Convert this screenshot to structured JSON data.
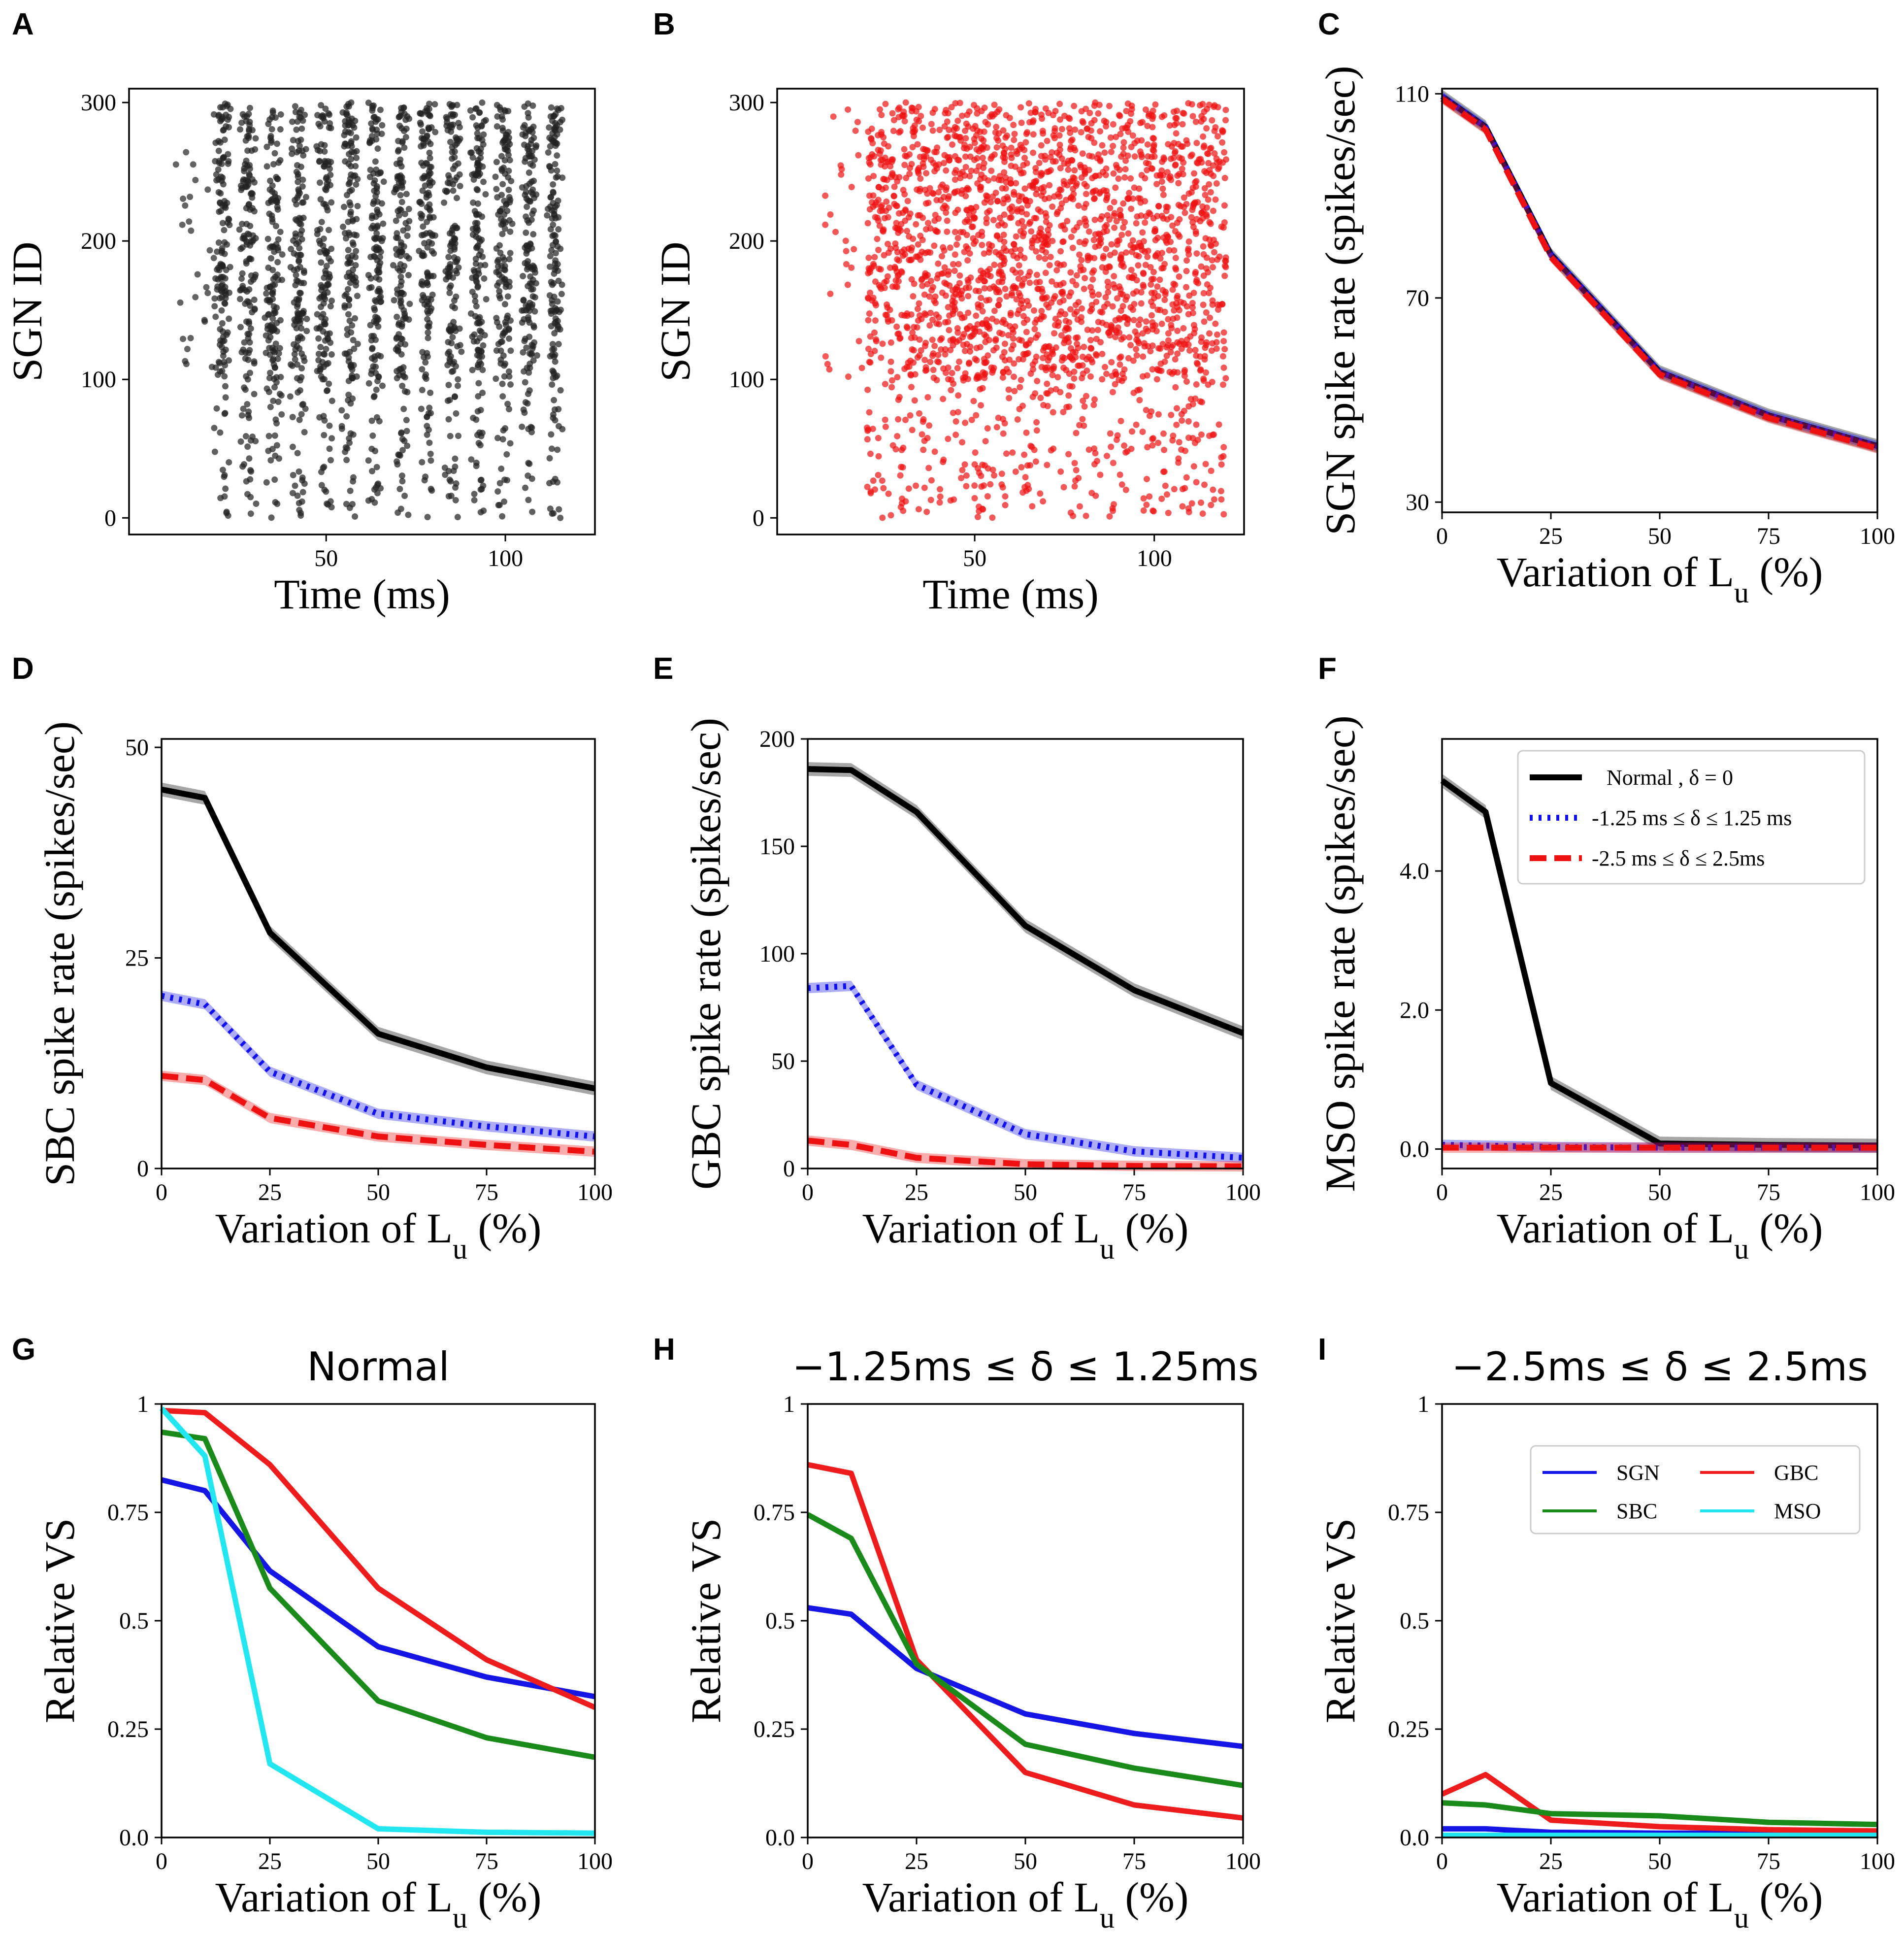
{
  "chart_data": [
    {
      "id": "A",
      "type": "scatter",
      "letter": "A",
      "xlabel": "Time (ms)",
      "ylabel": "SGN ID",
      "xlim": [
        -5,
        125
      ],
      "ylim": [
        -12,
        310
      ],
      "xticks": [
        "50",
        "100"
      ],
      "yticks": [
        "0",
        "100",
        "200",
        "300"
      ],
      "color": "#222222",
      "pattern": "phase-locked spike trains, approx. 14 vertical bands between 20 and 120 ms; sparse before 20 ms"
    },
    {
      "id": "B",
      "type": "scatter",
      "letter": "B",
      "xlabel": "Time (ms)",
      "ylabel": "SGN ID",
      "xlim": [
        -5,
        125
      ],
      "ylim": [
        -12,
        310
      ],
      "xticks": [
        "50",
        "100"
      ],
      "yticks": [
        "0",
        "100",
        "200",
        "300"
      ],
      "color": "#ee1111",
      "pattern": "random (non phase-locked) spikes between 20 and 120 ms; denser above SGN ID 100"
    },
    {
      "id": "C",
      "type": "line",
      "letter": "C",
      "xlabel": "Variation of L",
      "xlabel_sub": "u",
      "xlabel_suffix": " (%)",
      "ylabel": "SGN spike rate (spikes/sec)",
      "xlim": [
        0,
        100
      ],
      "ylim": [
        28,
        111
      ],
      "xticks": [
        "0",
        "25",
        "50",
        "75",
        "100"
      ],
      "yticks": [
        "30",
        "70",
        "110"
      ],
      "x": [
        0,
        10,
        25,
        50,
        75,
        100
      ],
      "series": [
        {
          "name": "Normal , δ = 0",
          "color": "#000000",
          "style": "solid",
          "values": [
            109.5,
            103.5,
            78.5,
            55.5,
            47,
            41
          ]
        },
        {
          "name": "-1.25 ms ≤ δ ≤ 1.25 ms",
          "color": "#1010ee",
          "style": "dotted",
          "values": [
            109.5,
            103.5,
            78.5,
            55.5,
            47,
            41
          ]
        },
        {
          "name": "-2.5 ms ≤ δ ≤ 2.5ms",
          "color": "#ee1111",
          "style": "dashed",
          "values": [
            109,
            103,
            78,
            55,
            46.5,
            40.5
          ]
        }
      ]
    },
    {
      "id": "D",
      "type": "line",
      "letter": "D",
      "xlabel": "Variation of L",
      "xlabel_sub": "u",
      "xlabel_suffix": " (%)",
      "ylabel": "SBC spike rate (spikes/sec)",
      "xlim": [
        0,
        100
      ],
      "ylim": [
        0,
        51
      ],
      "xticks": [
        "0",
        "25",
        "50",
        "75",
        "100"
      ],
      "yticks": [
        "0",
        "25",
        "50"
      ],
      "x": [
        0,
        10,
        25,
        50,
        75,
        100
      ],
      "series": [
        {
          "name": "Normal , δ = 0",
          "color": "#000000",
          "style": "solid",
          "values": [
            45,
            44,
            28,
            16,
            12,
            9.5
          ]
        },
        {
          "name": "-1.25 ms ≤ δ ≤ 1.25 ms",
          "color": "#1010ee",
          "style": "dotted",
          "values": [
            20.5,
            19.5,
            11.5,
            6.5,
            5,
            3.8
          ]
        },
        {
          "name": "-2.5 ms ≤ δ ≤ 2.5ms",
          "color": "#ee1111",
          "style": "dashed",
          "values": [
            11,
            10.5,
            6,
            3.8,
            2.8,
            2
          ]
        }
      ]
    },
    {
      "id": "E",
      "type": "line",
      "letter": "E",
      "xlabel": "Variation of L",
      "xlabel_sub": "u",
      "xlabel_suffix": " (%)",
      "ylabel": "GBC spike rate (spikes/sec)",
      "xlim": [
        0,
        100
      ],
      "ylim": [
        0,
        200
      ],
      "xticks": [
        "0",
        "25",
        "50",
        "75",
        "100"
      ],
      "yticks": [
        "0",
        "50",
        "100",
        "150",
        "200"
      ],
      "x": [
        0,
        10,
        25,
        50,
        75,
        100
      ],
      "series": [
        {
          "name": "Normal , δ = 0",
          "color": "#000000",
          "style": "solid",
          "values": [
            186,
            185.5,
            166,
            113,
            83,
            63
          ]
        },
        {
          "name": "-1.25 ms ≤ δ ≤ 1.25 ms",
          "color": "#1010ee",
          "style": "dotted",
          "values": [
            84,
            85,
            39,
            16,
            8,
            5
          ]
        },
        {
          "name": "-2.5 ms ≤ δ ≤ 2.5ms",
          "color": "#ee1111",
          "style": "dashed",
          "values": [
            13,
            11,
            5,
            2,
            1.2,
            1
          ]
        }
      ]
    },
    {
      "id": "F",
      "type": "line",
      "letter": "F",
      "xlabel": "Variation of L",
      "xlabel_sub": "u",
      "xlabel_suffix": " (%)",
      "ylabel": "MSO spike rate (spikes/sec)",
      "xlim": [
        0,
        100
      ],
      "ylim": [
        -0.28,
        5.9
      ],
      "xticks": [
        "0",
        "25",
        "50",
        "75",
        "100"
      ],
      "yticks": [
        "0.0",
        "2.0",
        "4.0"
      ],
      "x": [
        0,
        10,
        25,
        50,
        75,
        100
      ],
      "legend": {
        "position": "top-right"
      },
      "series": [
        {
          "name": "Normal , δ = 0",
          "color": "#000000",
          "style": "solid",
          "values": [
            5.3,
            4.85,
            0.95,
            0.08,
            0.06,
            0.05
          ]
        },
        {
          "name": "-1.25 ms ≤ δ ≤ 1.25 ms",
          "color": "#1010ee",
          "style": "dotted",
          "values": [
            0.06,
            0.05,
            0.03,
            0.02,
            0.02,
            0.02
          ]
        },
        {
          "name": "-2.5 ms ≤ δ ≤ 2.5ms",
          "color": "#ee1111",
          "style": "dashed",
          "values": [
            0.02,
            0.02,
            0.02,
            0.02,
            0.02,
            0.02
          ]
        }
      ]
    },
    {
      "id": "G",
      "type": "line",
      "letter": "G",
      "title": "Normal",
      "xlabel": "Variation of L",
      "xlabel_sub": "u",
      "xlabel_suffix": " (%)",
      "ylabel": "Relative VS",
      "xlim": [
        0,
        100
      ],
      "ylim": [
        0,
        1
      ],
      "xticks": [
        "0",
        "25",
        "50",
        "75",
        "100"
      ],
      "yticks": [
        "0.0",
        "0.25",
        "0.5",
        "0.75",
        "1"
      ],
      "x": [
        0,
        10,
        25,
        50,
        75,
        100
      ],
      "series": [
        {
          "name": "SGN",
          "color": "#1515e6",
          "style": "solid",
          "values": [
            0.825,
            0.8,
            0.615,
            0.44,
            0.37,
            0.325
          ]
        },
        {
          "name": "GBC",
          "color": "#ee1c1c",
          "style": "solid",
          "values": [
            0.985,
            0.98,
            0.86,
            0.575,
            0.41,
            0.3
          ]
        },
        {
          "name": "SBC",
          "color": "#1a8a1a",
          "style": "solid",
          "values": [
            0.935,
            0.92,
            0.575,
            0.315,
            0.23,
            0.185
          ]
        },
        {
          "name": "MSO",
          "color": "#22e6f0",
          "style": "solid",
          "values": [
            0.99,
            0.88,
            0.17,
            0.02,
            0.012,
            0.01
          ]
        }
      ]
    },
    {
      "id": "H",
      "type": "line",
      "letter": "H",
      "title": "−1.25ms ≤ δ ≤ 1.25ms",
      "xlabel": "Variation of L",
      "xlabel_sub": "u",
      "xlabel_suffix": " (%)",
      "ylabel": "Relative VS",
      "xlim": [
        0,
        100
      ],
      "ylim": [
        0,
        1
      ],
      "xticks": [
        "0",
        "25",
        "50",
        "75",
        "100"
      ],
      "yticks": [
        "0.0",
        "0.25",
        "0.5",
        "0.75",
        "1"
      ],
      "x": [
        0,
        10,
        25,
        50,
        75,
        100
      ],
      "series": [
        {
          "name": "SGN",
          "color": "#1515e6",
          "style": "solid",
          "values": [
            0.53,
            0.515,
            0.39,
            0.285,
            0.24,
            0.21
          ]
        },
        {
          "name": "GBC",
          "color": "#ee1c1c",
          "style": "solid",
          "values": [
            0.86,
            0.84,
            0.41,
            0.15,
            0.075,
            0.045
          ]
        },
        {
          "name": "SBC",
          "color": "#1a8a1a",
          "style": "solid",
          "values": [
            0.745,
            0.69,
            0.4,
            0.215,
            0.16,
            0.12
          ]
        }
      ]
    },
    {
      "id": "I",
      "type": "line",
      "letter": "I",
      "title": "−2.5ms ≤ δ ≤ 2.5ms",
      "xlabel": "Variation of L",
      "xlabel_sub": "u",
      "xlabel_suffix": " (%)",
      "ylabel": "Relative VS",
      "xlim": [
        0,
        100
      ],
      "ylim": [
        0,
        1
      ],
      "xticks": [
        "0",
        "25",
        "50",
        "75",
        "100"
      ],
      "yticks": [
        "0.0",
        "0.25",
        "0.5",
        "0.75",
        "1"
      ],
      "x": [
        0,
        10,
        25,
        50,
        75,
        100
      ],
      "legend": {
        "position": "top-right",
        "columns": 2
      },
      "series": [
        {
          "name": "SGN",
          "color": "#1515e6",
          "style": "solid",
          "values": [
            0.02,
            0.02,
            0.012,
            0.01,
            0.01,
            0.01
          ]
        },
        {
          "name": "GBC",
          "color": "#ee1c1c",
          "style": "solid",
          "values": [
            0.1,
            0.145,
            0.04,
            0.025,
            0.018,
            0.015
          ]
        },
        {
          "name": "SBC",
          "color": "#1a8a1a",
          "style": "solid",
          "values": [
            0.08,
            0.075,
            0.055,
            0.05,
            0.035,
            0.03
          ]
        },
        {
          "name": "MSO",
          "color": "#22e6f0",
          "style": "solid",
          "values": [
            0.005,
            0.005,
            0.005,
            0.005,
            0.005,
            0.005
          ]
        }
      ]
    }
  ]
}
